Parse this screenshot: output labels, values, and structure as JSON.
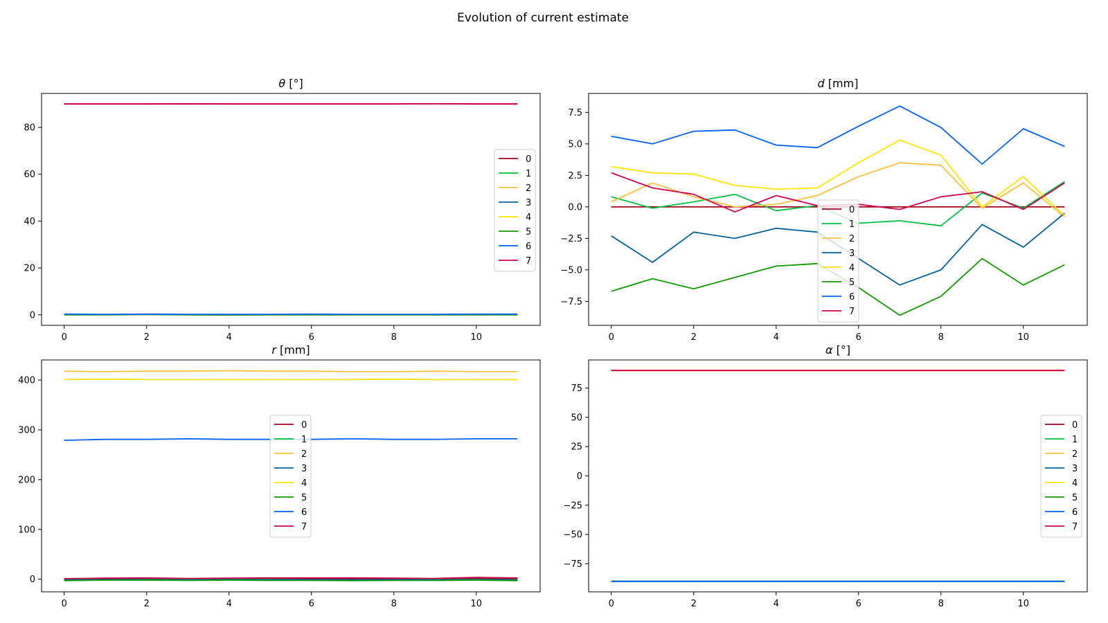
{
  "figure_title": "Evolution of current estimate",
  "series_colors": [
    "#a0001e",
    "#00c040",
    "#ffc040",
    "#00609e",
    "#ffe600",
    "#129a00",
    "#0060ff",
    "#d0004e"
  ],
  "chart_data": [
    {
      "type": "line",
      "title": "θ [°]",
      "title_parts": {
        "symbol": "θ",
        "unit": " [°]"
      },
      "xlabel": "",
      "ylabel": "",
      "x": [
        0,
        1,
        2,
        3,
        4,
        5,
        6,
        7,
        8,
        9,
        10,
        11
      ],
      "xlim": [
        -0.55,
        11.55
      ],
      "ylim": [
        -4.5,
        94.5
      ],
      "xticks": [
        0,
        2,
        4,
        6,
        8,
        10
      ],
      "yticks": [
        0,
        20,
        40,
        60,
        80
      ],
      "grid": false,
      "legend": "center-right",
      "series": [
        {
          "name": "0",
          "values": [
            90.0,
            90.0,
            90.0,
            90.1,
            90.0,
            90.0,
            90.0,
            90.0,
            90.0,
            90.1,
            90.0,
            90.0
          ]
        },
        {
          "name": "1",
          "values": [
            0.2,
            0.1,
            0.2,
            0.1,
            0.0,
            0.1,
            0.1,
            0.1,
            0.1,
            0.1,
            0.1,
            0.2
          ]
        },
        {
          "name": "2",
          "values": [
            0.1,
            0.0,
            0.1,
            0.0,
            -0.1,
            0.0,
            0.0,
            0.0,
            0.0,
            0.0,
            0.0,
            0.1
          ]
        },
        {
          "name": "3",
          "values": [
            0.1,
            0.1,
            0.2,
            0.1,
            0.0,
            0.1,
            0.1,
            0.1,
            0.1,
            0.1,
            0.1,
            0.1
          ]
        },
        {
          "name": "4",
          "values": [
            0.2,
            0.1,
            0.2,
            0.1,
            0.1,
            0.1,
            0.2,
            0.1,
            0.1,
            0.1,
            0.2,
            0.2
          ]
        },
        {
          "name": "5",
          "values": [
            0.0,
            0.0,
            0.1,
            0.0,
            -0.1,
            0.0,
            0.0,
            0.0,
            0.0,
            0.0,
            0.0,
            0.0
          ]
        },
        {
          "name": "6",
          "values": [
            0.3,
            0.2,
            0.3,
            0.2,
            0.2,
            0.2,
            0.3,
            0.2,
            0.2,
            0.2,
            0.3,
            0.3
          ]
        },
        {
          "name": "7",
          "values": [
            90.0,
            90.0,
            90.0,
            90.0,
            90.0,
            90.0,
            90.0,
            90.0,
            90.0,
            90.1,
            90.0,
            90.0
          ]
        }
      ]
    },
    {
      "type": "line",
      "title": "d [mm]",
      "title_parts": {
        "symbol": "d",
        "unit": " [mm]"
      },
      "xlabel": "",
      "ylabel": "",
      "x": [
        0,
        1,
        2,
        3,
        4,
        5,
        6,
        7,
        8,
        9,
        10,
        11
      ],
      "xlim": [
        -0.55,
        11.55
      ],
      "ylim": [
        -9.4,
        9.0
      ],
      "xticks": [
        0,
        2,
        4,
        6,
        8,
        10
      ],
      "yticks": [
        -7.5,
        -5.0,
        -2.5,
        0.0,
        2.5,
        5.0,
        7.5
      ],
      "grid": false,
      "legend": "lower-center",
      "series": [
        {
          "name": "0",
          "values": [
            0,
            0,
            0,
            0,
            0,
            0,
            0,
            0,
            0,
            0,
            0,
            0
          ]
        },
        {
          "name": "1",
          "values": [
            0.8,
            -0.1,
            0.4,
            1.0,
            -0.3,
            0.1,
            -1.3,
            -1.1,
            -1.5,
            1.1,
            -0.1,
            2.0
          ]
        },
        {
          "name": "2",
          "values": [
            0.4,
            1.9,
            0.8,
            0.0,
            0.2,
            0.9,
            2.4,
            3.5,
            3.3,
            -0.1,
            1.9,
            -0.8
          ]
        },
        {
          "name": "3",
          "values": [
            -2.3,
            -4.4,
            -2.0,
            -2.5,
            -1.7,
            -2.0,
            -4.1,
            -6.2,
            -5.0,
            -1.4,
            -3.2,
            -0.5
          ]
        },
        {
          "name": "4",
          "values": [
            3.2,
            2.7,
            2.6,
            1.7,
            1.4,
            1.5,
            3.5,
            5.3,
            4.1,
            0.0,
            2.4,
            -0.7
          ]
        },
        {
          "name": "5",
          "values": [
            -6.7,
            -5.7,
            -6.5,
            -5.6,
            -4.7,
            -4.5,
            -6.4,
            -8.6,
            -7.1,
            -4.1,
            -6.2,
            -4.6
          ]
        },
        {
          "name": "6",
          "values": [
            5.6,
            5.0,
            6.0,
            6.1,
            4.9,
            4.7,
            6.4,
            8.0,
            6.3,
            3.4,
            6.2,
            4.8
          ]
        },
        {
          "name": "7",
          "values": [
            2.7,
            1.5,
            1.0,
            -0.4,
            0.9,
            0.1,
            0.2,
            -0.2,
            0.8,
            1.2,
            -0.2,
            1.9
          ]
        }
      ]
    },
    {
      "type": "line",
      "title": "r [mm]",
      "title_parts": {
        "symbol": "r",
        "unit": " [mm]"
      },
      "xlabel": "",
      "ylabel": "",
      "x": [
        0,
        1,
        2,
        3,
        4,
        5,
        6,
        7,
        8,
        9,
        10,
        11
      ],
      "xlim": [
        -0.55,
        11.55
      ],
      "ylim": [
        -25.5,
        440.5
      ],
      "xticks": [
        0,
        2,
        4,
        6,
        8,
        10
      ],
      "yticks": [
        0,
        100,
        200,
        300,
        400
      ],
      "grid": false,
      "legend": "center",
      "series": [
        {
          "name": "0",
          "values": [
            0.5,
            1,
            1,
            0.5,
            1,
            1,
            1,
            1,
            1,
            0.5,
            1.5,
            1
          ]
        },
        {
          "name": "1",
          "values": [
            -1,
            -1,
            -0.5,
            -1,
            -0.5,
            -0.5,
            -1,
            -1.5,
            -1,
            -1,
            -0.5,
            -1
          ]
        },
        {
          "name": "2",
          "values": [
            418,
            417,
            418,
            418,
            419,
            418,
            418,
            417,
            417,
            418,
            417,
            417
          ]
        },
        {
          "name": "3",
          "values": [
            -1.5,
            -1,
            -1,
            -1.5,
            -1,
            -1,
            -1,
            -1,
            -1,
            -1.5,
            -1,
            -1.5
          ]
        },
        {
          "name": "4",
          "values": [
            401,
            402,
            401,
            401,
            401,
            401,
            401,
            401,
            402,
            401,
            401,
            401
          ]
        },
        {
          "name": "5",
          "values": [
            -3,
            -2,
            -2,
            -2.5,
            -2,
            -2.5,
            -2.5,
            -3,
            -2.5,
            -2.5,
            -2,
            -3
          ]
        },
        {
          "name": "6",
          "values": [
            279,
            281,
            281,
            282,
            281,
            281,
            281,
            282,
            281,
            281,
            282,
            282
          ]
        },
        {
          "name": "7",
          "values": [
            1,
            2,
            2.5,
            1.5,
            2,
            2.5,
            2.5,
            2.5,
            2,
            1.5,
            3.5,
            2.5
          ]
        }
      ]
    },
    {
      "type": "line",
      "title": "α [°]",
      "title_parts": {
        "symbol": "α",
        "unit": " [°]"
      },
      "xlabel": "",
      "ylabel": "",
      "x": [
        0,
        1,
        2,
        3,
        4,
        5,
        6,
        7,
        8,
        9,
        10,
        11
      ],
      "xlim": [
        -0.55,
        11.55
      ],
      "ylim": [
        -99,
        99
      ],
      "xticks": [
        0,
        2,
        4,
        6,
        8,
        10
      ],
      "yticks": [
        -75,
        -50,
        -25,
        0,
        25,
        50,
        75
      ],
      "grid": false,
      "legend": "center-right",
      "series": [
        {
          "name": "0",
          "values": [
            90,
            90,
            90,
            90,
            90,
            90,
            90,
            90,
            90,
            90,
            90,
            90
          ]
        },
        {
          "name": "1",
          "values": [
            -90,
            -90,
            -90,
            -90,
            -90,
            -90,
            -90,
            -90,
            -90,
            -90,
            -90,
            -90
          ]
        },
        {
          "name": "2",
          "values": [
            90,
            90,
            90,
            90,
            90,
            90,
            90,
            90,
            90,
            90,
            90,
            90
          ]
        },
        {
          "name": "3",
          "values": [
            -90,
            -90,
            -90,
            -90,
            -90,
            -90,
            -90,
            -90,
            -90,
            -90,
            -90,
            -90
          ]
        },
        {
          "name": "4",
          "values": [
            90,
            90,
            90,
            90,
            90,
            90,
            90,
            90,
            90,
            90,
            90,
            90
          ]
        },
        {
          "name": "5",
          "values": [
            -90,
            -90,
            -90,
            -90,
            -90,
            -90,
            -90,
            -90,
            -90,
            -90,
            -90,
            -90
          ]
        },
        {
          "name": "6",
          "values": [
            -90,
            -90,
            -90,
            -90,
            -90,
            -90,
            -90,
            -90,
            -90,
            -90,
            -90,
            -90
          ]
        },
        {
          "name": "7",
          "values": [
            90,
            90,
            90,
            90,
            90,
            90,
            90,
            90,
            90,
            90,
            90,
            90
          ]
        }
      ]
    }
  ]
}
